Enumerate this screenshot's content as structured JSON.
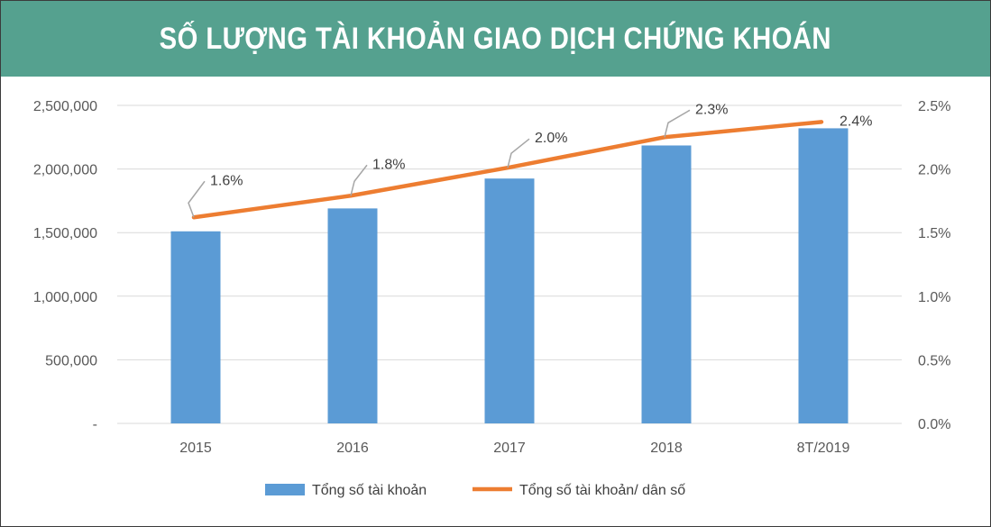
{
  "title": "SỐ LƯỢNG TÀI KHOẢN GIAO DỊCH CHỨNG KHOÁN",
  "colors": {
    "header_bg": "#55a18f",
    "bar": "#5b9bd5",
    "line": "#ed7d31",
    "grid": "#d9d9d9"
  },
  "chart_data": {
    "type": "bar",
    "title": "SỐ LƯỢNG TÀI KHOẢN GIAO DỊCH CHỨNG KHOÁN",
    "categories": [
      "2015",
      "2016",
      "2017",
      "2018",
      "8T/2019"
    ],
    "series": [
      {
        "name": "Tổng số tài khoản",
        "type": "bar",
        "axis": "left",
        "values": [
          1510000,
          1690000,
          1925000,
          2185000,
          2320000
        ]
      },
      {
        "name": "Tổng số tài khoản/ dân số",
        "type": "line",
        "axis": "right",
        "values": [
          1.62,
          1.79,
          2.01,
          2.25,
          2.37
        ],
        "data_labels": [
          "1.6%",
          "1.8%",
          "2.0%",
          "2.3%",
          "2.4%"
        ]
      }
    ],
    "left_axis": {
      "ylim": [
        0,
        2500000
      ],
      "tick_labels": [
        "-",
        "500,000",
        "1,000,000",
        "1,500,000",
        "2,000,000",
        "2,500,000"
      ]
    },
    "right_axis": {
      "ylim": [
        0,
        2.5
      ],
      "tick_labels": [
        "0.0%",
        "0.5%",
        "1.0%",
        "1.5%",
        "2.0%",
        "2.5%"
      ]
    },
    "grid": true,
    "legend_position": "bottom"
  }
}
